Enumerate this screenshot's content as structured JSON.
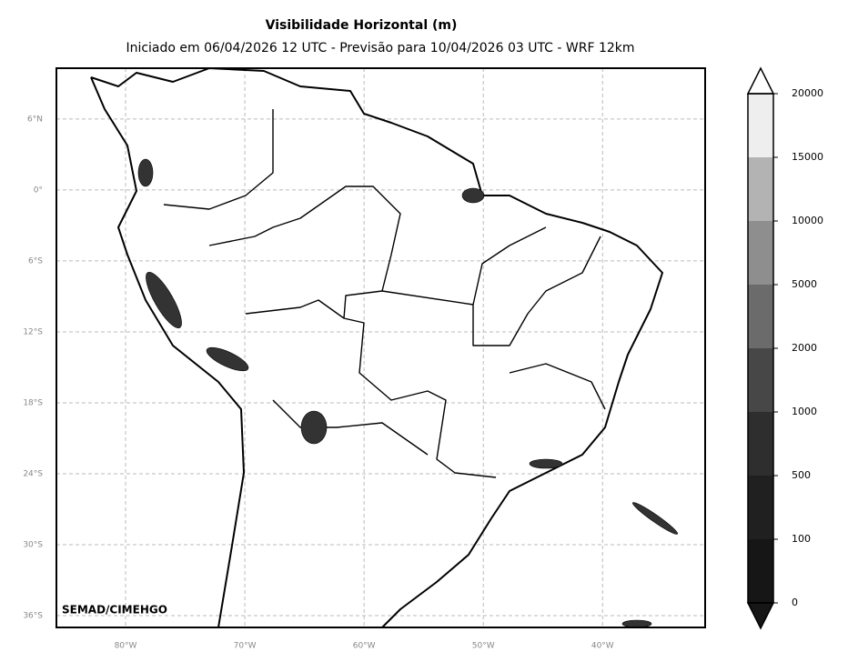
{
  "chart_data": {
    "type": "contour",
    "title": "Visibilidade Horizontal (m)",
    "subtitle": "Iniciado em 06/04/2026 12 UTC - Previsão para 10/04/2026 03 UTC - WRF 12km",
    "credit": "SEMAD/CIMEHGO",
    "xlim": [
      -85.8,
      -31.4
    ],
    "ylim": [
      -37,
      10.3
    ],
    "xticks": [
      {
        "value": -80,
        "label": "80°W"
      },
      {
        "value": -70,
        "label": "70°W"
      },
      {
        "value": -60,
        "label": "60°W"
      },
      {
        "value": -50,
        "label": "50°W"
      },
      {
        "value": -40,
        "label": "40°W"
      }
    ],
    "yticks": [
      {
        "value": 6,
        "label": "6°N"
      },
      {
        "value": 0,
        "label": "0°"
      },
      {
        "value": -6,
        "label": "6°S"
      },
      {
        "value": -12,
        "label": "12°S"
      },
      {
        "value": -18,
        "label": "18°S"
      },
      {
        "value": -24,
        "label": "24°S"
      },
      {
        "value": -30,
        "label": "30°S"
      },
      {
        "value": -36,
        "label": "36°S"
      }
    ],
    "grid": true,
    "colorbar": {
      "levels": [
        0,
        100,
        500,
        1000,
        2000,
        5000,
        10000,
        15000,
        20000
      ],
      "colors": [
        "#161616",
        "#202020",
        "#2e2e2e",
        "#474747",
        "#6b6b6b",
        "#8e8e8e",
        "#b3b3b3",
        "#eeeeee"
      ]
    }
  }
}
